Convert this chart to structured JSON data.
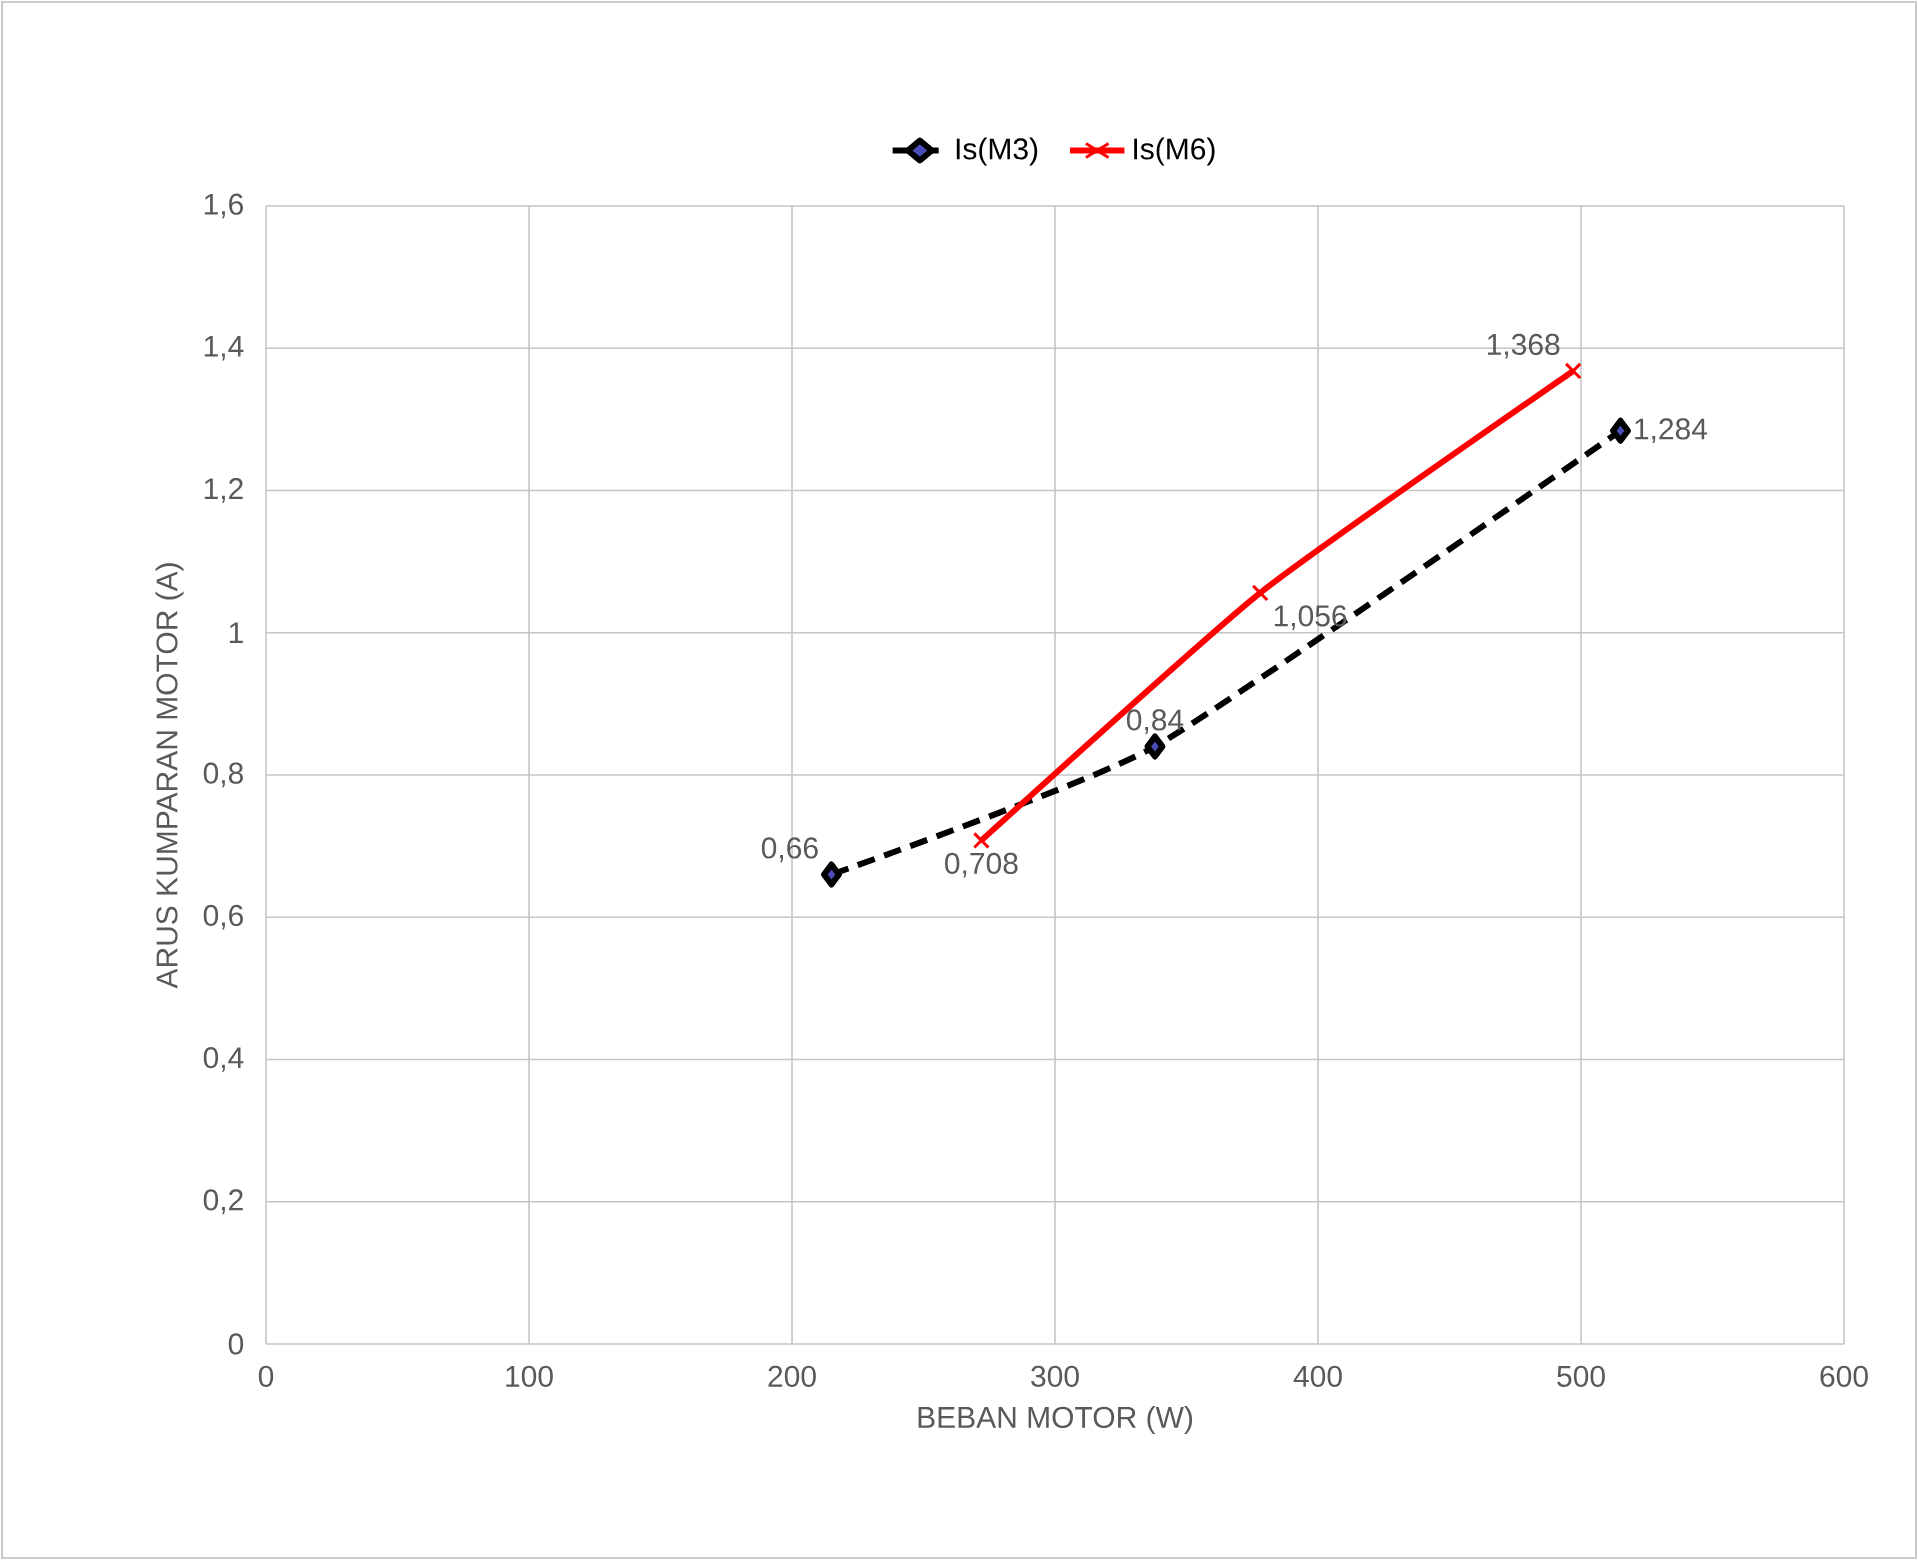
{
  "chart_data": {
    "type": "line",
    "xlabel": "BEBAN MOTOR (W)",
    "ylabel": "ARUS KUMPARAN MOTOR (A)",
    "series": [
      {
        "name": "Is(M3)",
        "color": "#000000",
        "marker": "diamond",
        "line_style": "dashed",
        "x": [
          215,
          338,
          515
        ],
        "values": [
          0.66,
          0.84,
          1.284
        ],
        "value_labels": [
          "0,66",
          "0,84",
          "1,284"
        ]
      },
      {
        "name": "Is(M6)",
        "color": "#ff0000",
        "marker": "cross",
        "line_style": "solid",
        "x": [
          272,
          378,
          497
        ],
        "values": [
          0.708,
          1.056,
          1.368
        ],
        "value_labels": [
          "0,708",
          "1,056",
          "1,368"
        ]
      }
    ],
    "xlim": [
      0,
      600
    ],
    "xticks": [
      0,
      100,
      200,
      300,
      400,
      500,
      600
    ],
    "ylim": [
      0,
      1.6
    ],
    "yticks": [
      0,
      {
        "value": 0.2,
        "label": "0,2"
      },
      {
        "value": 0.4,
        "label": "0,4"
      },
      {
        "value": 0.6,
        "label": "0,6"
      },
      {
        "value": 0.8,
        "label": "0,8"
      },
      1,
      {
        "value": 1.2,
        "label": "1,2"
      },
      {
        "value": 1.4,
        "label": "1,4"
      },
      {
        "value": 1.6,
        "label": "1,6"
      }
    ],
    "grid": true,
    "legend": "top"
  }
}
